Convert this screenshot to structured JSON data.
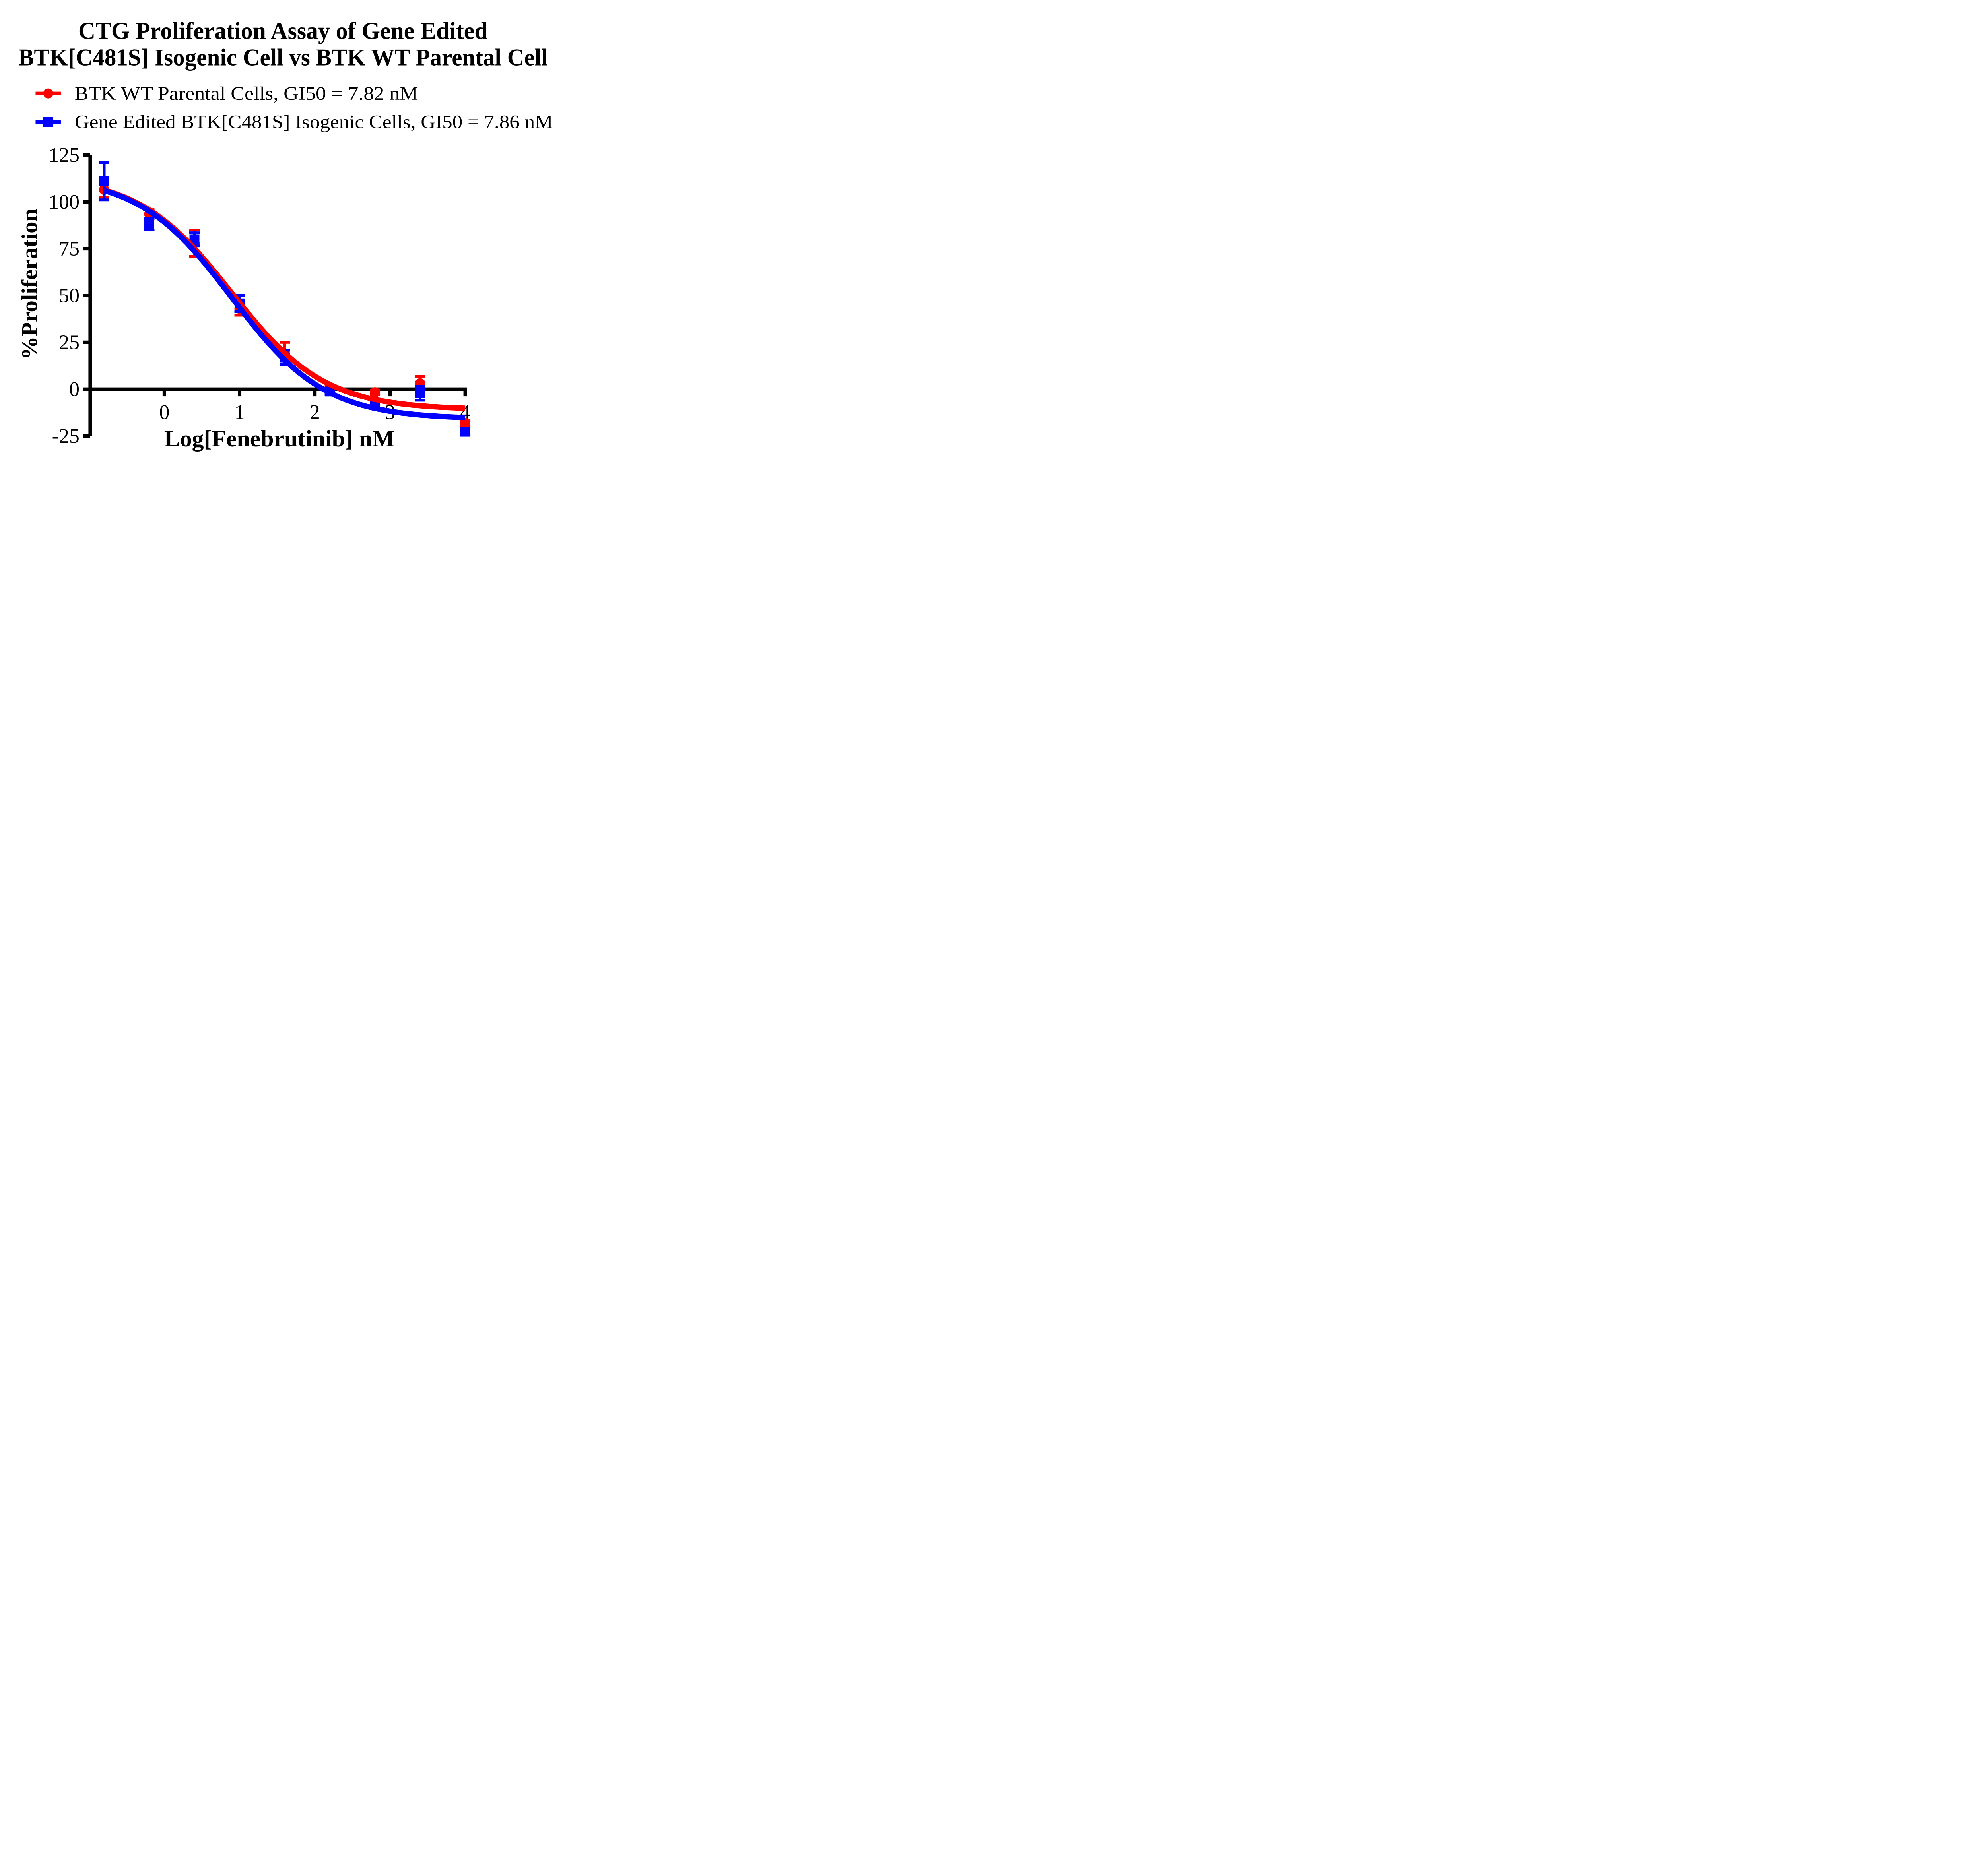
{
  "title": {
    "line1": "CTG Proliferation Assay of Gene Edited",
    "line2": "BTK[C481S] Isogenic Cell vs BTK WT Parental Cell"
  },
  "legend": {
    "items": [
      {
        "label": "BTK WT Parental Cells, GI50 = 7.82 nM",
        "color": "#FF0000",
        "marker": "circle"
      },
      {
        "label": "Gene Edited BTK[C481S] Isogenic Cells, GI50 = 7.86 nM",
        "color": "#0000FF",
        "marker": "square"
      }
    ]
  },
  "chart_data": {
    "type": "scatter",
    "title": "CTG Proliferation Assay of Gene Edited BTK[C481S] Isogenic Cell vs BTK WT Parental Cell",
    "xlabel": "Log[Fenebrutinib] nM",
    "ylabel": "%Proliferation",
    "xlim": [
      -0.976,
      4
    ],
    "ylim": [
      -25,
      125
    ],
    "x_ticks": [
      0,
      1,
      2,
      3,
      4
    ],
    "y_ticks": [
      125,
      100,
      75,
      50,
      25,
      0,
      -25
    ],
    "grid": false,
    "legend_position": "top-left",
    "axis_color": "#000000",
    "x": [
      -0.8,
      -0.2,
      0.4,
      1.0,
      1.6,
      2.2,
      2.8,
      3.4,
      4.0
    ],
    "series": [
      {
        "name": "BTK WT Parental Cells",
        "gi50_nM": 7.82,
        "color": "#FF0000",
        "marker": "circle",
        "y": [
          106.5,
          93.5,
          78.0,
          43.0,
          19.0,
          0.5,
          -1.7,
          3.1,
          -18.1
        ],
        "err": [
          4.0,
          2.3,
          7.0,
          3.5,
          6.0,
          1.0,
          1.0,
          3.6,
          1.5
        ],
        "fit": {
          "top": 114,
          "bottom": -11,
          "log_gi50": 0.893,
          "hill": 0.7
        }
      },
      {
        "name": "Gene Edited BTK[C481S] Isogenic Cells",
        "gi50_nM": 7.86,
        "color": "#0000FF",
        "marker": "square",
        "y": [
          111.0,
          88.0,
          80.0,
          45.8,
          17.0,
          -1.2,
          -7.3,
          -2.2,
          -22.7
        ],
        "err": [
          9.9,
          3.0,
          3.5,
          4.3,
          3.8,
          1.5,
          1.0,
          3.7,
          1.5
        ],
        "fit": {
          "top": 114,
          "bottom": -16,
          "log_gi50": 0.895,
          "hill": 0.7
        }
      }
    ],
    "curve_x_range": [
      -0.8,
      4.0
    ]
  }
}
